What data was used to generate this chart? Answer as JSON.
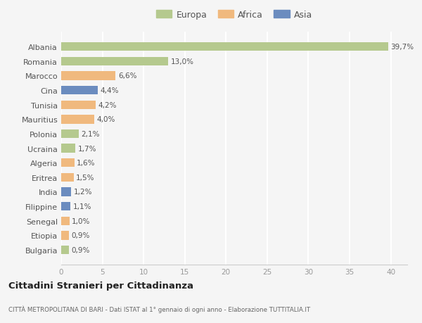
{
  "countries": [
    "Albania",
    "Romania",
    "Marocco",
    "Cina",
    "Tunisia",
    "Mauritius",
    "Polonia",
    "Ucraina",
    "Algeria",
    "Eritrea",
    "India",
    "Filippine",
    "Senegal",
    "Etiopia",
    "Bulgaria"
  ],
  "values": [
    39.7,
    13.0,
    6.6,
    4.4,
    4.2,
    4.0,
    2.1,
    1.7,
    1.6,
    1.5,
    1.2,
    1.1,
    1.0,
    0.9,
    0.9
  ],
  "labels": [
    "39,7%",
    "13,0%",
    "6,6%",
    "4,4%",
    "4,2%",
    "4,0%",
    "2,1%",
    "1,7%",
    "1,6%",
    "1,5%",
    "1,2%",
    "1,1%",
    "1,0%",
    "0,9%",
    "0,9%"
  ],
  "continents": [
    "Europa",
    "Europa",
    "Africa",
    "Asia",
    "Africa",
    "Africa",
    "Europa",
    "Europa",
    "Africa",
    "Africa",
    "Asia",
    "Asia",
    "Africa",
    "Africa",
    "Europa"
  ],
  "colors": {
    "Europa": "#b5c98e",
    "Africa": "#f0b97e",
    "Asia": "#6b8cbf"
  },
  "xlim": [
    0,
    42
  ],
  "xticks": [
    0,
    5,
    10,
    15,
    20,
    25,
    30,
    35,
    40
  ],
  "title": "Cittadini Stranieri per Cittadinanza",
  "subtitle": "CITTÀ METROPOLITANA DI BARI - Dati ISTAT al 1° gennaio di ogni anno - Elaborazione TUTTITALIA.IT",
  "background_color": "#f5f5f5",
  "grid_color": "#ffffff",
  "bar_height": 0.6
}
